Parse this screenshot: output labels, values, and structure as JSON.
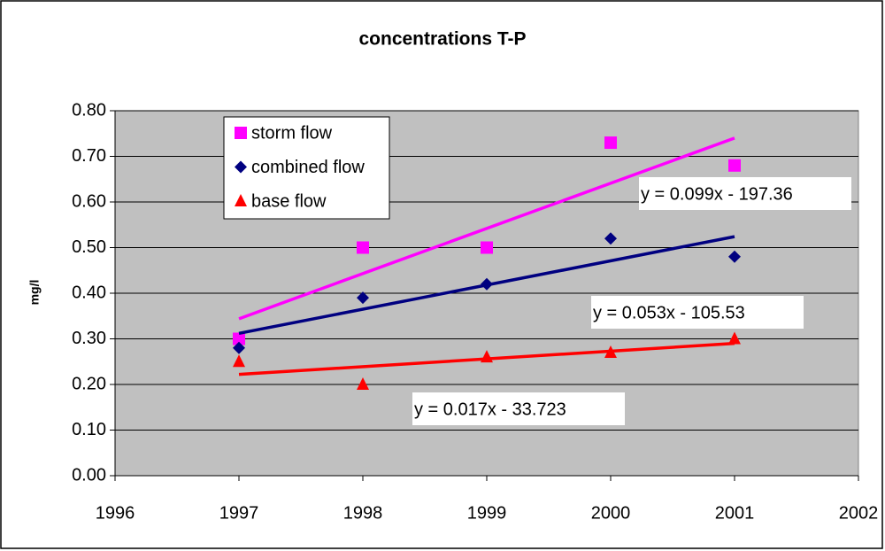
{
  "chart_data": {
    "type": "scatter",
    "title": "concentrations T-P",
    "y_label": "mg/l",
    "x": [
      1997,
      1998,
      1999,
      2000,
      2001
    ],
    "series": [
      {
        "name": "storm flow",
        "color": "#ff00ff",
        "marker": "square",
        "values": [
          0.3,
          0.5,
          0.5,
          0.73,
          0.68
        ],
        "trendline_label": "y = 0.099x - 197.36"
      },
      {
        "name": "combined flow",
        "color": "#000080",
        "marker": "diamond",
        "values": [
          0.28,
          0.39,
          0.42,
          0.52,
          0.48
        ],
        "trendline_label": "y = 0.053x - 105.53"
      },
      {
        "name": "base flow",
        "color": "#ff0000",
        "marker": "triangle",
        "values": [
          0.25,
          0.2,
          0.26,
          0.27,
          0.3
        ],
        "trendline_label": "y = 0.017x - 33.723"
      }
    ],
    "xlim": [
      1996,
      2002
    ],
    "xticks": [
      1996,
      1997,
      1998,
      1999,
      2000,
      2001,
      2002
    ],
    "ylim": [
      0,
      0.8
    ],
    "yticks": [
      {
        "value": 0,
        "label": "0.00"
      },
      {
        "value": 0.1,
        "label": "0.10"
      },
      {
        "value": 0.2,
        "label": "0.20"
      },
      {
        "value": 0.3,
        "label": "0.30"
      },
      {
        "value": 0.4,
        "label": "0.40"
      },
      {
        "value": 0.5,
        "label": "0.50"
      },
      {
        "value": 0.6,
        "label": "0.60"
      },
      {
        "value": 0.7,
        "label": "0.70"
      },
      {
        "value": 0.8,
        "label": "0.80"
      }
    ],
    "grid": true
  }
}
